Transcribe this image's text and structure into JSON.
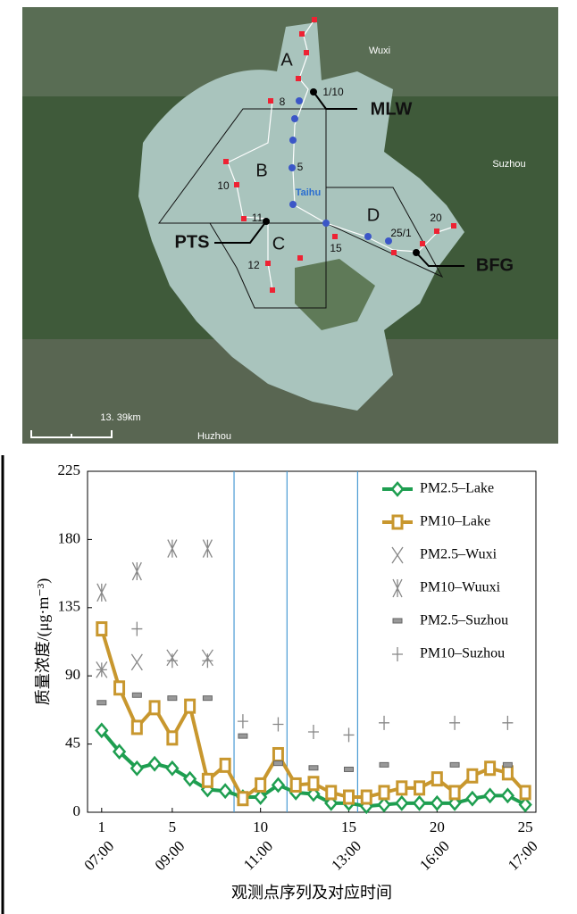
{
  "map": {
    "cities": [
      "Wuxi",
      "Suzhou",
      "Huzhou"
    ],
    "lake": "Taihu",
    "zones": [
      "A",
      "B",
      "C",
      "D"
    ],
    "stations": [
      "MLW",
      "PTS",
      "BFG"
    ],
    "point_labels": [
      "1/10",
      "8",
      "5",
      "10",
      "11",
      "12",
      "15",
      "25/1",
      "20"
    ],
    "scale": "13. 39km"
  },
  "chart_data": {
    "type": "line",
    "ylabel": "质量浓度/(μg·m⁻³)",
    "xlabel": "观测点序列及对应时间",
    "xlim": [
      0.2,
      25.6
    ],
    "ylim": [
      0,
      225
    ],
    "xticks": [
      1,
      5,
      10,
      15,
      20,
      25
    ],
    "time_ticks": [
      {
        "value": 1,
        "label": "07:00"
      },
      {
        "value": 5,
        "label": "09:00"
      },
      {
        "value": 10,
        "label": "11:00"
      },
      {
        "value": 15,
        "label": "13:00"
      },
      {
        "value": 20,
        "label": "16:00"
      },
      {
        "value": 25,
        "label": "17:00"
      }
    ],
    "yticks": [
      0,
      45,
      90,
      135,
      180,
      225
    ],
    "vlines": [
      8.5,
      11.5,
      15.5
    ],
    "vline_color": "#4a9bd4",
    "series": [
      {
        "name": "PM2.5–Lake",
        "color": "#1e9e50",
        "marker": "diamond",
        "line": true,
        "x": [
          1,
          2,
          3,
          4,
          5,
          6,
          7,
          8,
          9,
          10,
          11,
          12,
          13,
          14,
          15,
          16,
          17,
          18,
          19,
          20,
          21,
          22,
          23,
          24,
          25
        ],
        "values": [
          54,
          40,
          29,
          32,
          29,
          22,
          15,
          14,
          10,
          10,
          18,
          13,
          12,
          6,
          6,
          4,
          5,
          6,
          6,
          6,
          6,
          9,
          11,
          11,
          5
        ]
      },
      {
        "name": "PM10–Lake",
        "color": "#c8972e",
        "marker": "square",
        "line": true,
        "x": [
          1,
          2,
          3,
          4,
          5,
          6,
          7,
          8,
          9,
          10,
          11,
          12,
          13,
          14,
          15,
          16,
          17,
          18,
          19,
          20,
          21,
          22,
          23,
          24,
          25
        ],
        "values": [
          121,
          82,
          56,
          69,
          49,
          70,
          21,
          31,
          9,
          18,
          38,
          18,
          19,
          13,
          10,
          10,
          13,
          16,
          16,
          22,
          13,
          24,
          29,
          26,
          13
        ]
      },
      {
        "name": "PM2.5–Wuxi",
        "color": "#888888",
        "marker": "x",
        "line": false,
        "x": [
          1,
          3,
          5,
          7
        ],
        "values": [
          94,
          99,
          102,
          102
        ]
      },
      {
        "name": "PM10–Wuuxi",
        "color": "#888888",
        "marker": "asterisk",
        "line": false,
        "x": [
          1,
          3,
          5,
          7
        ],
        "values": [
          145,
          159,
          174,
          174
        ]
      },
      {
        "name": "PM2.5–Suzhou",
        "color": "#888888",
        "marker": "dash",
        "line": false,
        "x": [
          1,
          3,
          5,
          7,
          9,
          11,
          13,
          15,
          17,
          21,
          24
        ],
        "values": [
          72,
          77,
          75,
          75,
          50,
          32,
          29,
          28,
          31,
          31,
          31
        ]
      },
      {
        "name": "PM10–Suzhou",
        "color": "#888888",
        "marker": "plus",
        "line": false,
        "x": [
          1,
          3,
          5,
          7,
          9,
          11,
          13,
          15,
          17,
          21,
          24
        ],
        "values": [
          94,
          121,
          100,
          100,
          60,
          58,
          53,
          51,
          59,
          59,
          59
        ]
      }
    ]
  }
}
